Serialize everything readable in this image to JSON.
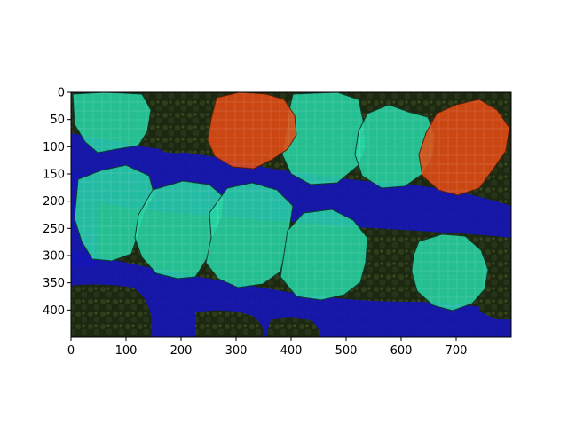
{
  "figure": {
    "image": {
      "description_tag": "aerial-forest-segmentation-overlay",
      "classes": [
        {
          "name": "tree-crown-green",
          "color": "#27d3a3"
        },
        {
          "name": "tree-crown-red",
          "color": "#e24a12"
        },
        {
          "name": "water-channel",
          "color": "#1212b8"
        },
        {
          "name": "background-forest",
          "color": "#1f2a12"
        }
      ]
    },
    "axes": {
      "xlim": [
        0,
        800
      ],
      "ylim": [
        450,
        0
      ],
      "x_ticks": [
        "0",
        "100",
        "200",
        "300",
        "400",
        "500",
        "600",
        "700"
      ],
      "y_ticks": [
        "0",
        "50",
        "100",
        "150",
        "200",
        "250",
        "300",
        "350",
        "400"
      ]
    }
  }
}
